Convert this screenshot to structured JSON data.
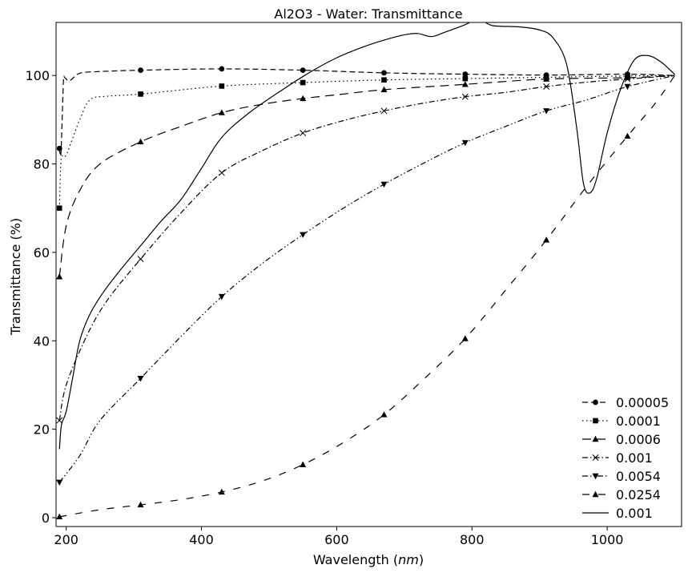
{
  "chart_data": {
    "type": "line",
    "title": "Al2O3 - Water: Transmittance",
    "xlabel": "Wavelength  (nm)",
    "ylabel": "Transmittance   (%)",
    "xlim": [
      185,
      1110
    ],
    "ylim": [
      -2,
      112
    ],
    "xticks": [
      200,
      400,
      600,
      800,
      1000
    ],
    "yticks": [
      0,
      20,
      40,
      60,
      80,
      100
    ],
    "grid": false,
    "legend_position": "bottom-right",
    "series": [
      {
        "name": "0.00005",
        "dash": "7 4",
        "marker": "circle",
        "points": [
          [
            190,
            83.5
          ],
          [
            192,
            82
          ],
          [
            194,
            90
          ],
          [
            196,
            99
          ],
          [
            198,
            99.5
          ],
          [
            205,
            98.8
          ],
          [
            220,
            100.5
          ],
          [
            250,
            100.9
          ],
          [
            310,
            101.2
          ],
          [
            430,
            101.5
          ],
          [
            550,
            101.2
          ],
          [
            670,
            100.6
          ],
          [
            790,
            100.3
          ],
          [
            910,
            100.1
          ],
          [
            1030,
            100.3
          ],
          [
            1100,
            100
          ]
        ],
        "marker_x": [
          190,
          310,
          430,
          550,
          670,
          790,
          910,
          1030
        ]
      },
      {
        "name": "0.0001",
        "dash": "1.5 3.5",
        "marker": "square",
        "points": [
          [
            190,
            70
          ],
          [
            192,
            80
          ],
          [
            195,
            82
          ],
          [
            200,
            82
          ],
          [
            210,
            86
          ],
          [
            220,
            90
          ],
          [
            235,
            94.5
          ],
          [
            260,
            95.3
          ],
          [
            310,
            95.8
          ],
          [
            430,
            97.6
          ],
          [
            550,
            98.4
          ],
          [
            670,
            99
          ],
          [
            790,
            99.3
          ],
          [
            910,
            99.6
          ],
          [
            1030,
            99.9
          ],
          [
            1100,
            100
          ]
        ],
        "marker_x": [
          190,
          310,
          430,
          550,
          670,
          790,
          910,
          1030
        ]
      },
      {
        "name": "0.0006",
        "dash": "11 7",
        "marker": "triangle-up",
        "points": [
          [
            190,
            54.5
          ],
          [
            200,
            66
          ],
          [
            220,
            74
          ],
          [
            250,
            80
          ],
          [
            310,
            85
          ],
          [
            370,
            88.5
          ],
          [
            430,
            91.6
          ],
          [
            490,
            93.5
          ],
          [
            550,
            94.8
          ],
          [
            610,
            95.8
          ],
          [
            670,
            96.8
          ],
          [
            790,
            98
          ],
          [
            910,
            99.2
          ],
          [
            1030,
            99.5
          ],
          [
            1100,
            100
          ]
        ],
        "marker_x": [
          190,
          310,
          430,
          550,
          670,
          790,
          910,
          1030
        ]
      },
      {
        "name": "0.001",
        "dash": "7 3 1.5 3",
        "marker": "x",
        "points": [
          [
            190,
            22
          ],
          [
            200,
            30
          ],
          [
            230,
            41
          ],
          [
            260,
            49
          ],
          [
            310,
            58.5
          ],
          [
            370,
            69
          ],
          [
            430,
            78
          ],
          [
            490,
            83
          ],
          [
            550,
            87
          ],
          [
            610,
            89.8
          ],
          [
            670,
            92
          ],
          [
            730,
            93.8
          ],
          [
            790,
            95.2
          ],
          [
            850,
            96.2
          ],
          [
            910,
            97.5
          ],
          [
            970,
            98.5
          ],
          [
            1030,
            99.2
          ],
          [
            1100,
            100
          ]
        ],
        "marker_x": [
          190,
          310,
          430,
          550,
          670,
          790,
          910,
          1030
        ]
      },
      {
        "name": "0.0054",
        "dash": "7 3 1.5 3 1.5 3",
        "marker": "triangle-down",
        "points": [
          [
            190,
            8
          ],
          [
            220,
            14
          ],
          [
            250,
            22
          ],
          [
            310,
            31.5
          ],
          [
            370,
            41
          ],
          [
            430,
            50
          ],
          [
            490,
            57.5
          ],
          [
            550,
            64
          ],
          [
            610,
            70
          ],
          [
            670,
            75.4
          ],
          [
            730,
            80.3
          ],
          [
            790,
            84.8
          ],
          [
            850,
            88.5
          ],
          [
            910,
            92
          ],
          [
            970,
            94.5
          ],
          [
            1030,
            97.5
          ],
          [
            1100,
            100
          ]
        ],
        "marker_x": [
          190,
          310,
          430,
          550,
          670,
          790,
          910,
          1030
        ]
      },
      {
        "name": "0.0254",
        "dash": "9 11",
        "marker": "triangle-up",
        "points": [
          [
            190,
            0.2
          ],
          [
            250,
            1.8
          ],
          [
            310,
            2.9
          ],
          [
            370,
            4.1
          ],
          [
            430,
            5.8
          ],
          [
            490,
            8.3
          ],
          [
            550,
            12
          ],
          [
            610,
            17
          ],
          [
            670,
            23.3
          ],
          [
            730,
            31.5
          ],
          [
            790,
            40.5
          ],
          [
            850,
            51.5
          ],
          [
            910,
            62.8
          ],
          [
            970,
            75
          ],
          [
            1030,
            86.3
          ],
          [
            1070,
            93.5
          ],
          [
            1100,
            100
          ]
        ],
        "marker_x": [
          190,
          310,
          430,
          550,
          670,
          790,
          910,
          1030
        ]
      },
      {
        "name": "0.001",
        "dash": "",
        "marker": "none",
        "points": [
          [
            190,
            15.5
          ],
          [
            193,
            21
          ],
          [
            200,
            24
          ],
          [
            210,
            32
          ],
          [
            220,
            40
          ],
          [
            235,
            46
          ],
          [
            255,
            51
          ],
          [
            280,
            56
          ],
          [
            310,
            61.5
          ],
          [
            340,
            67
          ],
          [
            370,
            72
          ],
          [
            400,
            79
          ],
          [
            430,
            86
          ],
          [
            470,
            91.5
          ],
          [
            520,
            96.8
          ],
          [
            560,
            100.7
          ],
          [
            600,
            104
          ],
          [
            640,
            106.5
          ],
          [
            670,
            108
          ],
          [
            700,
            109.2
          ],
          [
            720,
            109.5
          ],
          [
            740,
            108.8
          ],
          [
            760,
            109.8
          ],
          [
            790,
            111.5
          ],
          [
            810,
            112.8
          ],
          [
            830,
            111.3
          ],
          [
            870,
            111
          ],
          [
            900,
            110.3
          ],
          [
            920,
            108.5
          ],
          [
            940,
            102.5
          ],
          [
            955,
            88
          ],
          [
            965,
            75.5
          ],
          [
            975,
            73.5
          ],
          [
            985,
            77
          ],
          [
            1000,
            87
          ],
          [
            1020,
            97
          ],
          [
            1040,
            103.5
          ],
          [
            1060,
            104.5
          ],
          [
            1080,
            103
          ],
          [
            1100,
            100.2
          ]
        ],
        "marker_x": []
      }
    ]
  }
}
